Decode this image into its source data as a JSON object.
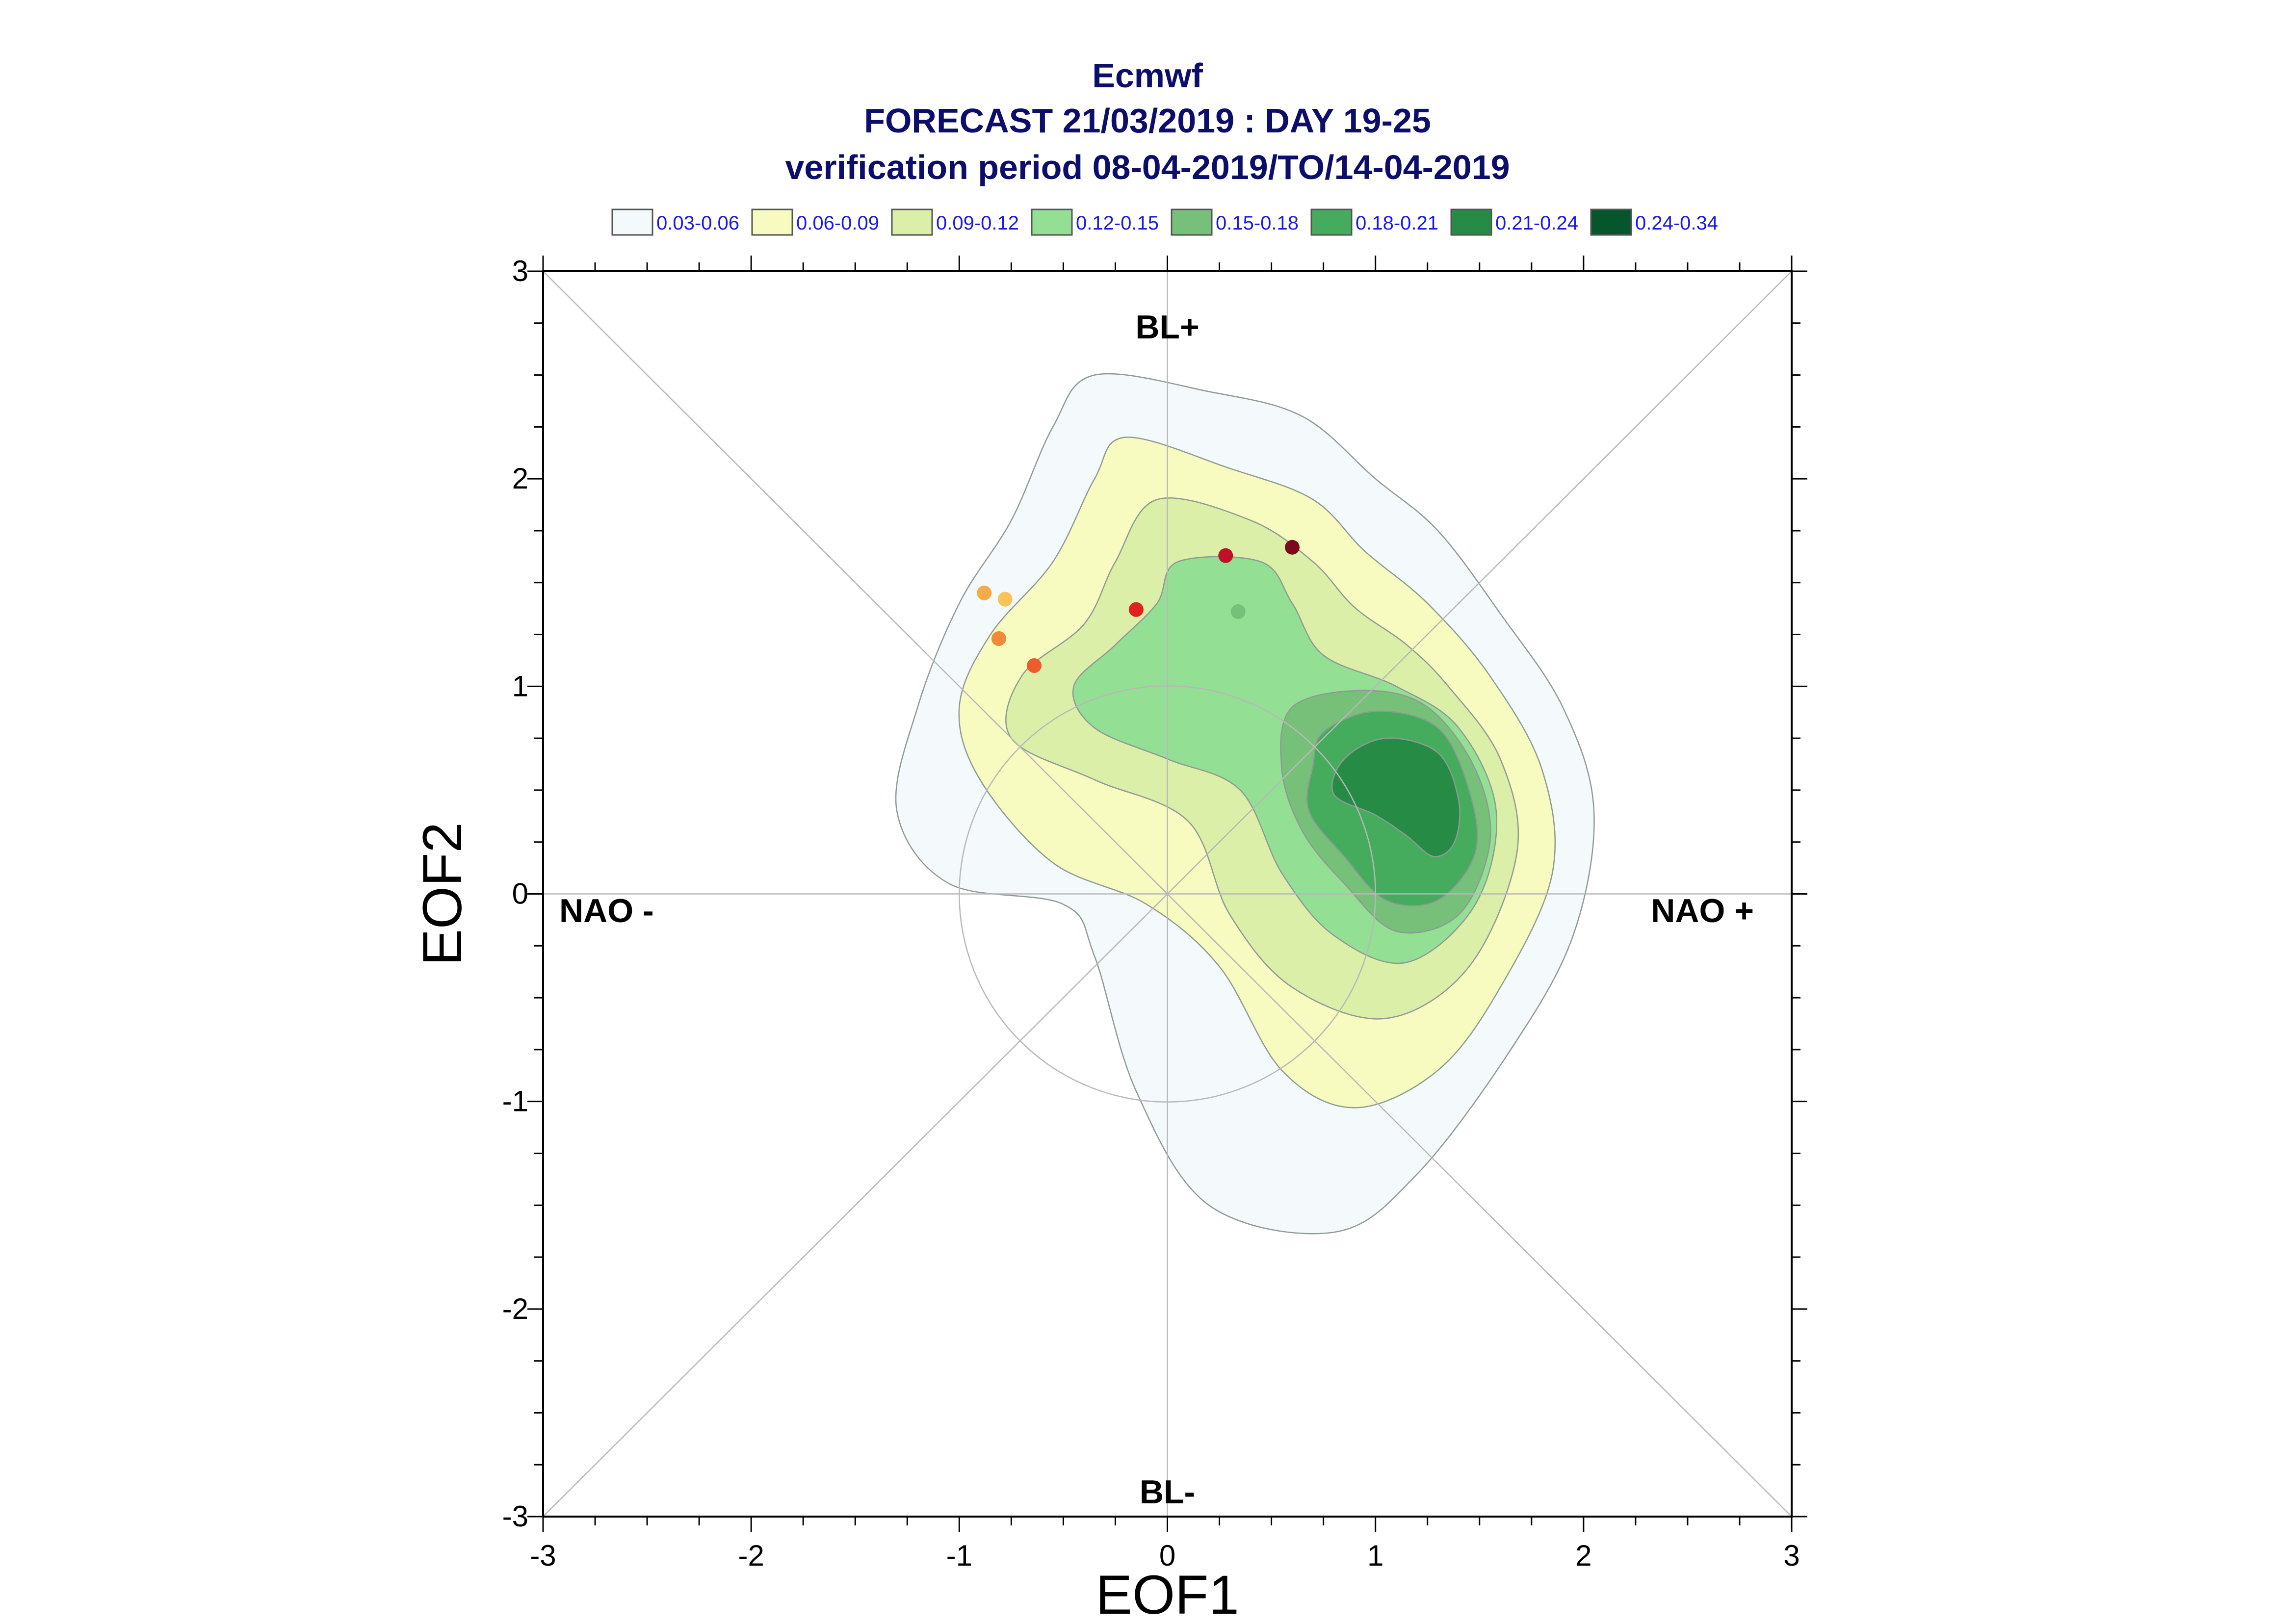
{
  "chart_data": {
    "type": "contour",
    "title": "Ecmwf",
    "subtitle": "FORECAST 21/03/2019 : DAY 19-25",
    "subtitle2": "verification period 08-04-2019/TO/14-04-2019",
    "xlabel": "EOF1",
    "ylabel": "EOF2",
    "xlim": [
      -3,
      3
    ],
    "ylim": [
      -3,
      3
    ],
    "xticks": [
      "-3",
      "-2",
      "-1",
      "0",
      "1",
      "2",
      "3"
    ],
    "yticks": [
      "-3",
      "-2",
      "-1",
      "0",
      "1",
      "2",
      "3"
    ],
    "grid": false,
    "legend_position": "top",
    "regime_labels": {
      "top": "BL+",
      "bottom": "BL-",
      "left": "NAO -",
      "right": "NAO +"
    },
    "levels": [
      {
        "label": "0.03-0.06",
        "color": "#f4f9fc"
      },
      {
        "label": "0.06-0.09",
        "color": "#f7fbbf"
      },
      {
        "label": "0.09-0.12",
        "color": "#dcefa8"
      },
      {
        "label": "0.12-0.15",
        "color": "#93df93"
      },
      {
        "label": "0.15-0.18",
        "color": "#77c07a"
      },
      {
        "label": "0.18-0.21",
        "color": "#45ac5e"
      },
      {
        "label": "0.21-0.24",
        "color": "#268b45"
      },
      {
        "label": "0.24-0.34",
        "color": "#06562d"
      }
    ],
    "contours": [
      {
        "level": 0,
        "points": [
          [
            -0.35,
            2.5
          ],
          [
            0.2,
            2.42
          ],
          [
            0.65,
            2.3
          ],
          [
            1.0,
            2.0
          ],
          [
            1.3,
            1.75
          ],
          [
            1.6,
            1.35
          ],
          [
            1.9,
            0.9
          ],
          [
            2.05,
            0.4
          ],
          [
            1.95,
            -0.2
          ],
          [
            1.65,
            -0.75
          ],
          [
            1.2,
            -1.35
          ],
          [
            0.8,
            -1.63
          ],
          [
            0.2,
            -1.5
          ],
          [
            -0.15,
            -0.95
          ],
          [
            -0.35,
            -0.3
          ],
          [
            -0.5,
            -0.05
          ],
          [
            -1.05,
            0.05
          ],
          [
            -1.3,
            0.4
          ],
          [
            -1.2,
            0.9
          ],
          [
            -1.0,
            1.4
          ],
          [
            -0.75,
            1.8
          ],
          [
            -0.55,
            2.25
          ]
        ]
      },
      {
        "level": 1,
        "points": [
          [
            -0.2,
            2.2
          ],
          [
            0.3,
            2.05
          ],
          [
            0.7,
            1.9
          ],
          [
            0.95,
            1.65
          ],
          [
            1.25,
            1.4
          ],
          [
            1.55,
            1.05
          ],
          [
            1.8,
            0.6
          ],
          [
            1.85,
            0.1
          ],
          [
            1.6,
            -0.45
          ],
          [
            1.3,
            -0.85
          ],
          [
            0.9,
            -1.03
          ],
          [
            0.55,
            -0.85
          ],
          [
            0.25,
            -0.35
          ],
          [
            -0.1,
            -0.05
          ],
          [
            -0.55,
            0.15
          ],
          [
            -0.9,
            0.55
          ],
          [
            -1.0,
            0.9
          ],
          [
            -0.85,
            1.25
          ],
          [
            -0.55,
            1.6
          ],
          [
            -0.35,
            2.0
          ]
        ]
      },
      {
        "level": 2,
        "points": [
          [
            -0.05,
            1.9
          ],
          [
            0.4,
            1.8
          ],
          [
            0.7,
            1.6
          ],
          [
            0.9,
            1.38
          ],
          [
            1.15,
            1.2
          ],
          [
            1.35,
            1.0
          ],
          [
            1.6,
            0.65
          ],
          [
            1.68,
            0.2
          ],
          [
            1.45,
            -0.35
          ],
          [
            1.05,
            -0.6
          ],
          [
            0.6,
            -0.45
          ],
          [
            0.3,
            -0.1
          ],
          [
            0.1,
            0.35
          ],
          [
            -0.35,
            0.55
          ],
          [
            -0.75,
            0.75
          ],
          [
            -0.7,
            1.05
          ],
          [
            -0.4,
            1.3
          ],
          [
            -0.25,
            1.6
          ]
        ]
      },
      {
        "level": 3,
        "points": [
          [
            0.05,
            1.6
          ],
          [
            0.45,
            1.6
          ],
          [
            0.6,
            1.4
          ],
          [
            0.75,
            1.15
          ],
          [
            1.1,
            1.0
          ],
          [
            1.4,
            0.8
          ],
          [
            1.58,
            0.4
          ],
          [
            1.48,
            -0.05
          ],
          [
            1.15,
            -0.33
          ],
          [
            0.8,
            -0.2
          ],
          [
            0.55,
            0.1
          ],
          [
            0.35,
            0.5
          ],
          [
            0.0,
            0.65
          ],
          [
            -0.35,
            0.8
          ],
          [
            -0.45,
            1.0
          ],
          [
            -0.25,
            1.2
          ],
          [
            -0.05,
            1.4
          ]
        ]
      },
      {
        "level": 4,
        "points": [
          [
            0.6,
            0.9
          ],
          [
            0.95,
            0.98
          ],
          [
            1.25,
            0.9
          ],
          [
            1.48,
            0.6
          ],
          [
            1.55,
            0.25
          ],
          [
            1.4,
            -0.1
          ],
          [
            1.1,
            -0.18
          ],
          [
            0.85,
            0.05
          ],
          [
            0.65,
            0.3
          ],
          [
            0.55,
            0.6
          ]
        ]
      },
      {
        "level": 5,
        "points": [
          [
            0.75,
            0.78
          ],
          [
            1.0,
            0.88
          ],
          [
            1.3,
            0.8
          ],
          [
            1.45,
            0.5
          ],
          [
            1.48,
            0.2
          ],
          [
            1.3,
            -0.03
          ],
          [
            1.05,
            -0.03
          ],
          [
            0.85,
            0.18
          ],
          [
            0.68,
            0.4
          ],
          [
            0.7,
            0.62
          ]
        ]
      },
      {
        "level": 6,
        "points": [
          [
            0.85,
            0.65
          ],
          [
            1.05,
            0.75
          ],
          [
            1.3,
            0.68
          ],
          [
            1.4,
            0.45
          ],
          [
            1.38,
            0.25
          ],
          [
            1.28,
            0.18
          ],
          [
            1.15,
            0.28
          ],
          [
            1.0,
            0.38
          ],
          [
            0.8,
            0.48
          ]
        ]
      }
    ],
    "member_points": [
      {
        "x": -0.88,
        "y": 1.45,
        "color": "#f5ac47"
      },
      {
        "x": -0.78,
        "y": 1.42,
        "color": "#f8c45a"
      },
      {
        "x": -0.81,
        "y": 1.23,
        "color": "#f08a38"
      },
      {
        "x": -0.64,
        "y": 1.1,
        "color": "#ef5c2c"
      },
      {
        "x": -0.15,
        "y": 1.37,
        "color": "#e0211d"
      },
      {
        "x": 0.28,
        "y": 1.63,
        "color": "#c0102a"
      },
      {
        "x": 0.6,
        "y": 1.67,
        "color": "#7a0a1c"
      },
      {
        "x": 0.34,
        "y": 1.36,
        "color": "#77c07a"
      }
    ],
    "reference_circle_radius": 1.0
  }
}
